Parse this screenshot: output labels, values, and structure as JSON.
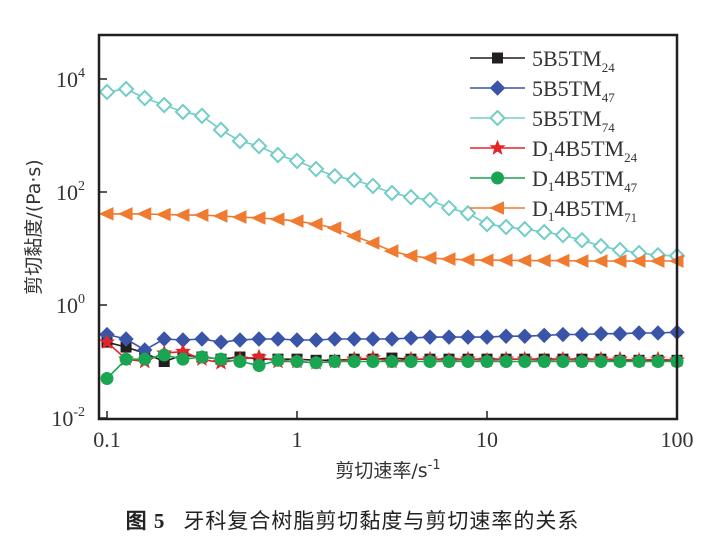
{
  "chart_data": {
    "type": "line",
    "title": "",
    "xlabel": "剪切速率/s⁻¹",
    "xlabel_base": "剪切速率/s",
    "xlabel_sup": "-1",
    "ylabel": "剪切黏度/(Pa·s)",
    "xscale": "log",
    "yscale": "log",
    "xlim": [
      0.1,
      100
    ],
    "ylim": [
      0.01,
      50000
    ],
    "xticks": [
      0.1,
      1,
      10,
      100
    ],
    "xtick_labels": [
      "0.1",
      "1",
      "10",
      "100"
    ],
    "yticks": [
      0.01,
      1,
      100,
      10000
    ],
    "ytick_labels": [
      {
        "base": "10",
        "exp": "-2"
      },
      {
        "base": "10",
        "exp": "0"
      },
      {
        "base": "10",
        "exp": "2"
      },
      {
        "base": "10",
        "exp": "4"
      }
    ],
    "grid": false,
    "legend_position": "top-right",
    "x": [
      0.1,
      0.126,
      0.158,
      0.2,
      0.251,
      0.316,
      0.398,
      0.501,
      0.631,
      0.794,
      1,
      1.26,
      1.58,
      2,
      2.51,
      3.16,
      3.98,
      5.01,
      6.31,
      7.94,
      10,
      12.6,
      15.8,
      20,
      25.1,
      31.6,
      39.8,
      50.1,
      63.1,
      79.4,
      100
    ],
    "series": [
      {
        "name": "5B5TM",
        "sub": "24",
        "prefix": "",
        "color": "#231f20",
        "marker": "square",
        "filled": true,
        "values": [
          0.22,
          0.18,
          0.14,
          0.1,
          0.13,
          0.12,
          0.11,
          0.12,
          0.11,
          0.11,
          0.11,
          0.105,
          0.105,
          0.11,
          0.11,
          0.115,
          0.11,
          0.11,
          0.11,
          0.11,
          0.11,
          0.11,
          0.11,
          0.11,
          0.11,
          0.11,
          0.11,
          0.105,
          0.105,
          0.105,
          0.105
        ]
      },
      {
        "name": "5B5TM",
        "sub": "47",
        "prefix": "",
        "color": "#3a55a8",
        "marker": "diamond",
        "filled": true,
        "values": [
          0.3,
          0.25,
          0.16,
          0.25,
          0.24,
          0.25,
          0.22,
          0.24,
          0.25,
          0.25,
          0.24,
          0.24,
          0.25,
          0.25,
          0.25,
          0.25,
          0.26,
          0.27,
          0.27,
          0.27,
          0.27,
          0.28,
          0.28,
          0.29,
          0.3,
          0.3,
          0.31,
          0.31,
          0.32,
          0.32,
          0.33
        ]
      },
      {
        "name": "5B5TM",
        "sub": "74",
        "prefix": "",
        "color": "#72cdc8",
        "marker": "diamond",
        "filled": false,
        "values": [
          5900,
          6650,
          4600,
          3460,
          2620,
          2230,
          1260,
          800,
          650,
          450,
          355,
          255,
          190,
          163,
          128,
          96,
          81,
          72,
          52,
          42,
          27,
          24,
          22,
          19.5,
          17.3,
          14,
          11,
          9.4,
          8.3,
          7.6,
          7.4
        ]
      },
      {
        "name": "D",
        "dsub": "1",
        "rest": "4B5TM",
        "sub": "24",
        "color": "#e42428",
        "marker": "star",
        "filled": true,
        "values": [
          0.22,
          0.11,
          0.1,
          0.14,
          0.15,
          0.11,
          0.095,
          0.11,
          0.12,
          0.1,
          0.1,
          0.095,
          0.1,
          0.11,
          0.115,
          0.1,
          0.11,
          0.11,
          0.105,
          0.11,
          0.105,
          0.11,
          0.11,
          0.105,
          0.11,
          0.105,
          0.11,
          0.11,
          0.105,
          0.11,
          0.105
        ]
      },
      {
        "name": "D",
        "dsub": "1",
        "rest": "4B5TM",
        "sub": "47",
        "color": "#1aa552",
        "marker": "circle",
        "filled": true,
        "values": [
          0.05,
          0.11,
          0.11,
          0.13,
          0.11,
          0.12,
          0.11,
          0.1,
          0.085,
          0.105,
          0.1,
          0.095,
          0.1,
          0.1,
          0.1,
          0.1,
          0.1,
          0.1,
          0.1,
          0.1,
          0.1,
          0.1,
          0.1,
          0.1,
          0.1,
          0.1,
          0.1,
          0.1,
          0.1,
          0.1,
          0.1
        ]
      },
      {
        "name": "D",
        "dsub": "1",
        "rest": "4B5TM",
        "sub": "71",
        "color": "#f07a30",
        "marker": "triangle-left",
        "filled": true,
        "values": [
          41,
          41,
          41,
          40,
          39,
          39,
          37.6,
          36,
          34.7,
          33,
          30.6,
          27,
          23,
          16.6,
          12.5,
          9.0,
          7.4,
          6.8,
          6.5,
          6.3,
          6.2,
          6.2,
          6.1,
          6.1,
          6.1,
          6.0,
          6.0,
          6.0,
          6.0,
          6.0,
          6.0
        ]
      }
    ]
  },
  "caption": {
    "figure_number": "图 5",
    "text": "牙科复合树脂剪切黏度与剪切速率的关系"
  }
}
